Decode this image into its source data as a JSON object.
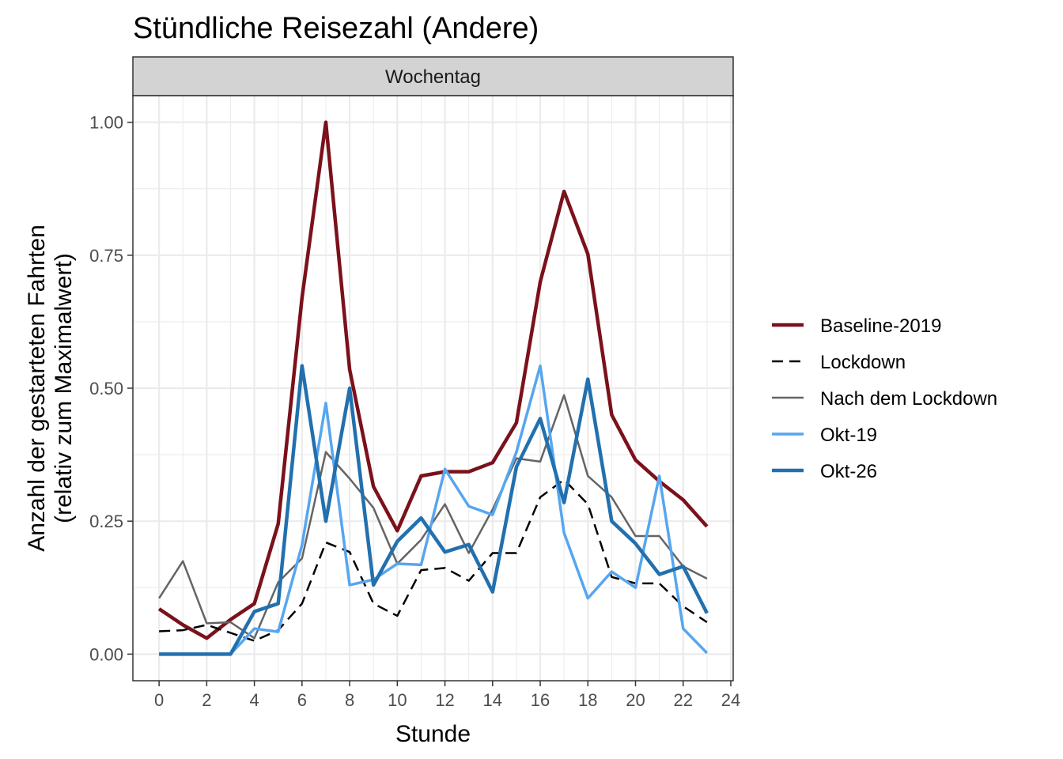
{
  "chart_data": {
    "type": "line",
    "title": "Stündliche Reisezahl (Andere)",
    "facet_label": "Wochentag",
    "xlabel": "Stunde",
    "ylabel_lines": [
      "Anzahl der gestarteten Fahrten",
      "(relativ zum Maximalwert)"
    ],
    "xlim": [
      -1.1,
      24.1
    ],
    "ylim": [
      -0.05,
      1.05
    ],
    "x_ticks": [
      0,
      2,
      4,
      6,
      8,
      10,
      12,
      14,
      16,
      18,
      20,
      22,
      24
    ],
    "x_tick_labels": [
      "0",
      "2",
      "4",
      "6",
      "8",
      "10",
      "12",
      "14",
      "16",
      "18",
      "20",
      "22",
      "24"
    ],
    "y_ticks": [
      0,
      0.25,
      0.5,
      0.75,
      1.0
    ],
    "y_tick_labels": [
      "0.00",
      "0.25",
      "0.50",
      "0.75",
      "1.00"
    ],
    "grid": true,
    "legend_position": "right",
    "x": [
      0,
      1,
      2,
      3,
      4,
      5,
      6,
      7,
      8,
      9,
      10,
      11,
      12,
      13,
      14,
      15,
      16,
      17,
      18,
      19,
      20,
      21,
      22,
      23
    ],
    "series": [
      {
        "name": "Baseline-2019",
        "color": "#7b111b",
        "style": "solid",
        "width": 4.5,
        "values": [
          0.085,
          0.055,
          0.03,
          0.065,
          0.095,
          0.245,
          0.67,
          1.0,
          0.535,
          0.315,
          0.232,
          0.335,
          0.343,
          0.343,
          0.36,
          0.435,
          0.7,
          0.87,
          0.752,
          0.45,
          0.365,
          0.325,
          0.29,
          0.24
        ]
      },
      {
        "name": "Lockdown",
        "color": "#000000",
        "style": "dashed",
        "width": 2.5,
        "values": [
          0.043,
          0.045,
          0.055,
          0.04,
          0.025,
          0.045,
          0.095,
          0.21,
          0.192,
          0.095,
          0.072,
          0.158,
          0.162,
          0.138,
          0.19,
          0.19,
          0.295,
          0.328,
          0.282,
          0.145,
          0.133,
          0.133,
          0.09,
          0.06
        ]
      },
      {
        "name": "Nach dem Lockdown",
        "color": "#646464",
        "style": "solid",
        "width": 2.5,
        "values": [
          0.105,
          0.175,
          0.058,
          0.06,
          0.03,
          0.135,
          0.18,
          0.38,
          0.33,
          0.275,
          0.17,
          0.215,
          0.282,
          0.19,
          0.272,
          0.368,
          0.362,
          0.487,
          0.335,
          0.295,
          0.222,
          0.222,
          0.165,
          0.142
        ]
      },
      {
        "name": "Okt-19",
        "color": "#56a6f0",
        "style": "solid",
        "width": 3.5,
        "values": [
          0.0,
          0.0,
          0.0,
          0.0,
          0.048,
          0.042,
          0.205,
          0.472,
          0.13,
          0.14,
          0.17,
          0.168,
          0.348,
          0.278,
          0.262,
          0.38,
          0.542,
          0.228,
          0.105,
          0.155,
          0.125,
          0.335,
          0.048,
          0.002
        ]
      },
      {
        "name": "Okt-26",
        "color": "#2270ae",
        "style": "solid",
        "width": 4.5,
        "values": [
          0.0,
          0.0,
          0.0,
          0.0,
          0.08,
          0.095,
          0.542,
          0.25,
          0.5,
          0.13,
          0.212,
          0.256,
          0.192,
          0.206,
          0.117,
          0.352,
          0.443,
          0.285,
          0.517,
          0.25,
          0.208,
          0.15,
          0.165,
          0.077
        ]
      }
    ]
  }
}
